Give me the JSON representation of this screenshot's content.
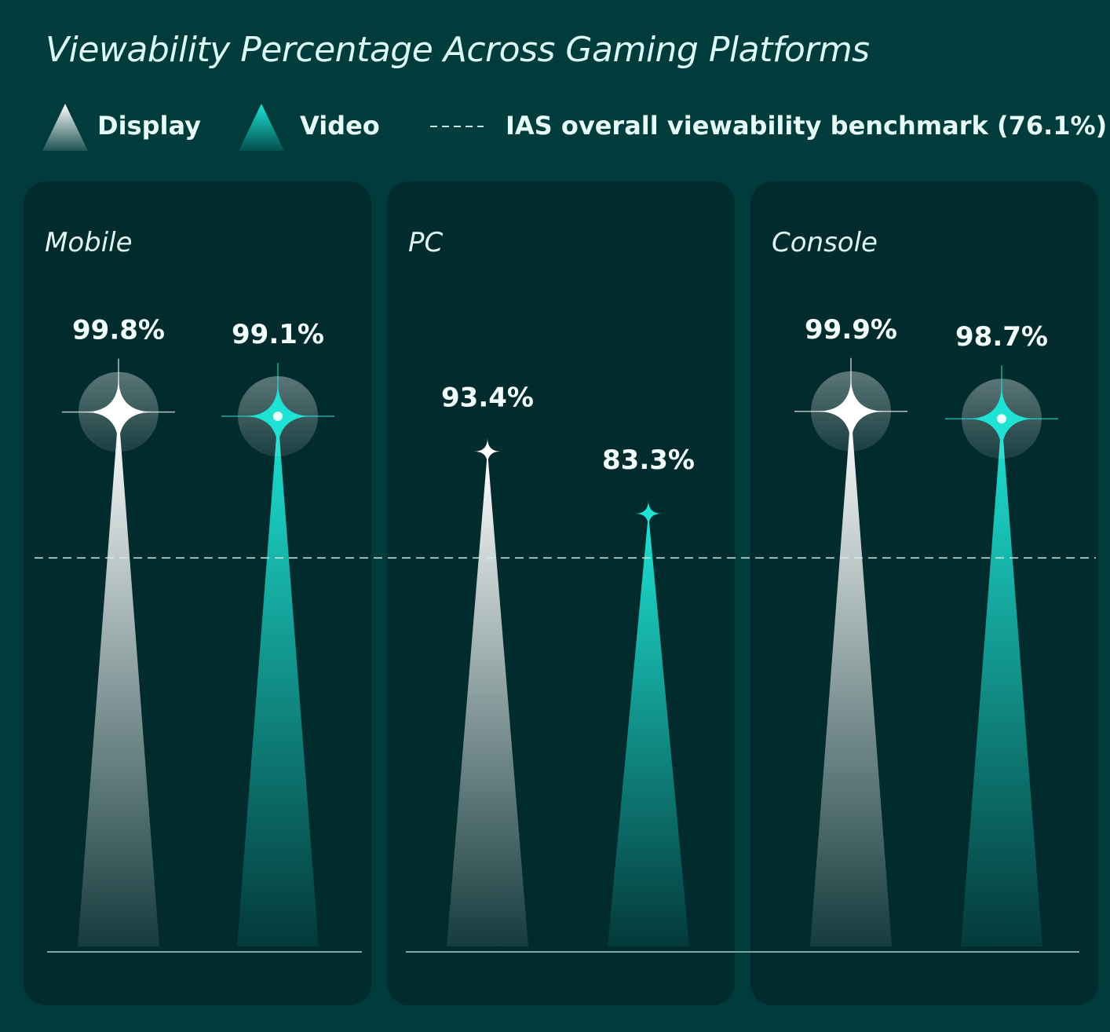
{
  "chart_data": {
    "type": "bar",
    "title": "Viewability Percentage Across Gaming Platforms",
    "categories": [
      "Mobile",
      "PC",
      "Console"
    ],
    "series": [
      {
        "name": "Display",
        "values": [
          99.8,
          93.4,
          99.9
        ],
        "labels": [
          "99.8%",
          "93.4%",
          "99.9%"
        ],
        "color": "#ffffff"
      },
      {
        "name": "Video",
        "values": [
          99.1,
          83.3,
          98.7
        ],
        "labels": [
          "99.1%",
          "83.3%",
          "98.7%"
        ],
        "color": "#1ee3d4"
      }
    ],
    "benchmark": {
      "label": "IAS overall viewability benchmark (76.1%)",
      "value": 76.1
    },
    "highlight_threshold": 95,
    "background": "#003c3c",
    "panel_color": "#022b2d"
  }
}
